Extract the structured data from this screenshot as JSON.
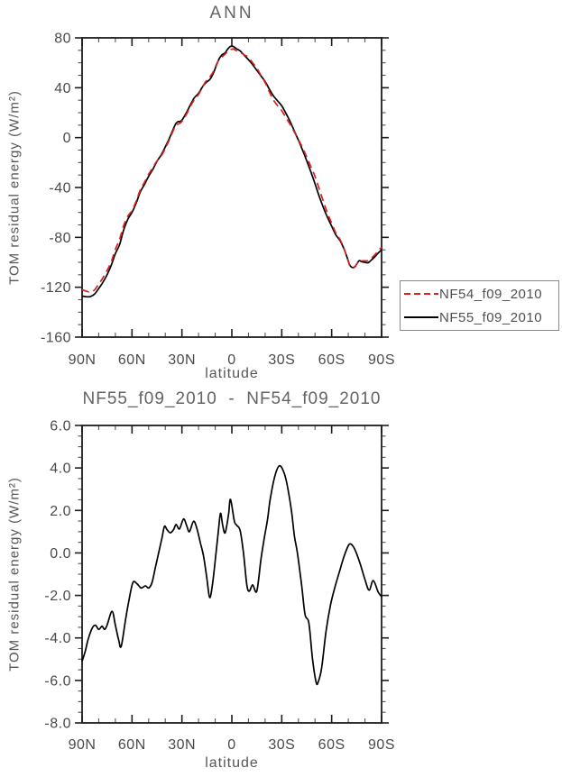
{
  "page": {
    "background": "#ffffff"
  },
  "chart_data": [
    {
      "type": "line",
      "title": "ANN",
      "xlabel": "latitude",
      "ylabel": "TOM residual energy (W/m²)",
      "xlim": [
        90,
        -90
      ],
      "ylim": [
        -160,
        80
      ],
      "grid": false,
      "x_tick_values": [
        90,
        60,
        30,
        0,
        -30,
        -60,
        -90
      ],
      "x_tick_labels": [
        "90N",
        "60N",
        "30N",
        "0",
        "30S",
        "60S",
        "90S"
      ],
      "x_minor_step": 10,
      "y_tick_values": [
        80,
        40,
        0,
        -40,
        -80,
        -120,
        -160
      ],
      "y_tick_labels": [
        "80",
        "40",
        "0",
        "-40",
        "-80",
        "-120",
        "-160"
      ],
      "y_minor_step": 10,
      "legend_position": "outside-right",
      "series": [
        {
          "name": "NF54_f09_2010",
          "color": "#dc1e1e",
          "line_style": "dashed",
          "lat": [
            90,
            87.5,
            85,
            82.5,
            80,
            77.5,
            75,
            72.5,
            70,
            67.5,
            65,
            62.5,
            60,
            57.5,
            55,
            52.5,
            50,
            47.5,
            45,
            42.5,
            40,
            37.5,
            35,
            33.5,
            32.5,
            31.5,
            30,
            27.5,
            25,
            22.5,
            20,
            17.5,
            16,
            14.5,
            13,
            11,
            9,
            7.5,
            6,
            5,
            4,
            2.5,
            1,
            0,
            -1,
            -2.5,
            -5,
            -7.5,
            -10,
            -12.5,
            -15,
            -17.5,
            -20,
            -22.5,
            -25,
            -27.5,
            -30,
            -32.5,
            -35,
            -37.5,
            -40,
            -42.5,
            -45,
            -47.5,
            -50,
            -52.5,
            -55,
            -57.5,
            -60,
            -62.5,
            -65,
            -67.5,
            -69,
            -70,
            -71,
            -72.5,
            -74,
            -75,
            -76.5,
            -78,
            -80,
            -82,
            -84,
            -86,
            -88,
            -90
          ],
          "values": [
            -121.9,
            -123.2,
            -123.8,
            -122.1,
            -117.4,
            -112.5,
            -106.6,
            -99.7,
            -89.6,
            -81.7,
            -70.5,
            -63,
            -58.5,
            -51,
            -41.9,
            -35.9,
            -29.4,
            -24.2,
            -18.7,
            -14.9,
            -8.7,
            -1.5,
            6.3,
            9.5,
            10.8,
            11.3,
            13.1,
            18.2,
            24.9,
            30.6,
            34.6,
            41,
            44.3,
            46.8,
            49,
            53.2,
            59.4,
            62.8,
            64.6,
            65.9,
            67,
            69.1,
            70.7,
            70.8,
            71.1,
            69.9,
            68.4,
            66.3,
            64.3,
            60,
            55.8,
            49.8,
            44.2,
            36.9,
            30.2,
            25.6,
            21.6,
            16.1,
            10.7,
            4.7,
            -1.6,
            -8.1,
            -15.5,
            -23.3,
            -31.2,
            -41.1,
            -51.1,
            -60.7,
            -68.7,
            -76.5,
            -81.7,
            -89.4,
            -95.2,
            -99.3,
            -102.9,
            -104.6,
            -103.7,
            -101.6,
            -98.4,
            -98.8,
            -98.8,
            -98.7,
            -96.5,
            -94,
            -90.7,
            -88
          ]
        },
        {
          "name": "NF55_f09_2010",
          "color": "#000000",
          "line_style": "solid",
          "lat": [
            90,
            87.5,
            85,
            82.5,
            80,
            77.5,
            75,
            72.5,
            70,
            67.5,
            65,
            62.5,
            60,
            57.5,
            55,
            52.5,
            50,
            47.5,
            45,
            42.5,
            40,
            37.5,
            35,
            33.5,
            32.5,
            31.5,
            30,
            27.5,
            25,
            22.5,
            20,
            17.5,
            16,
            14.5,
            13,
            11,
            9,
            7.5,
            6,
            5,
            4,
            2.5,
            1,
            0,
            -1,
            -2.5,
            -5,
            -7.5,
            -10,
            -12.5,
            -15,
            -17.5,
            -20,
            -22.5,
            -25,
            -27.5,
            -30,
            -32.5,
            -35,
            -37.5,
            -40,
            -42.5,
            -45,
            -47.5,
            -50,
            -52.5,
            -55,
            -57.5,
            -60,
            -62.5,
            -65,
            -67.5,
            -69,
            -70,
            -71,
            -72.5,
            -74,
            -75,
            -76.5,
            -78,
            -80,
            -82,
            -84,
            -86,
            -88,
            -90
          ],
          "values": [
            -127,
            -127.6,
            -127.5,
            -125.5,
            -121,
            -116,
            -110,
            -102.5,
            -93,
            -86,
            -74,
            -65.5,
            -60,
            -52.5,
            -43.5,
            -37.5,
            -31,
            -25.5,
            -19,
            -14,
            -7.5,
            -0.5,
            7.5,
            11.5,
            12.8,
            12.8,
            14,
            19.5,
            26,
            32,
            35.5,
            41,
            43.5,
            45.2,
            47,
            52,
            59,
            63.5,
            66.3,
            67.2,
            68,
            71,
            73,
            73.3,
            73,
            71.5,
            69.5,
            66,
            62.5,
            58.5,
            54,
            49.5,
            45,
            39,
            33.5,
            29.5,
            25.5,
            19.5,
            13,
            5.5,
            -2,
            -10,
            -18.5,
            -27.5,
            -37,
            -47,
            -56,
            -64,
            -71,
            -78,
            -82.5,
            -89.5,
            -95,
            -99,
            -102.5,
            -104.2,
            -103.5,
            -101.5,
            -98.7,
            -99.5,
            -100,
            -100.3,
            -98,
            -95.5,
            -92.5,
            -90
          ]
        }
      ]
    },
    {
      "type": "line",
      "title": "NF55_f09_2010  -  NF54_f09_2010",
      "xlabel": "latitude",
      "ylabel": "TOM residual energy (W/m²)",
      "xlim": [
        90,
        -90
      ],
      "ylim": [
        -8,
        6
      ],
      "grid": false,
      "x_tick_values": [
        90,
        60,
        30,
        0,
        -30,
        -60,
        -90
      ],
      "x_tick_labels": [
        "90N",
        "60N",
        "30N",
        "0",
        "30S",
        "60S",
        "90S"
      ],
      "x_minor_step": 10,
      "y_tick_values": [
        6,
        4,
        2,
        0,
        -2,
        -4,
        -6,
        -8
      ],
      "y_tick_labels": [
        "6.0",
        "4.0",
        "2.0",
        "0.0",
        "-2.0",
        "-4.0",
        "-6.0",
        "-8.0"
      ],
      "y_minor_step": 0.5,
      "legend_position": "none",
      "series": [
        {
          "name": "NF55_f09_2010 - NF54_f09_2010",
          "color": "#000000",
          "line_style": "solid",
          "lat": [
            90,
            88,
            86.5,
            84,
            82,
            80,
            78,
            76.5,
            75,
            72,
            70,
            68,
            66.5,
            64,
            62,
            59.5,
            57,
            54.5,
            52,
            50,
            48,
            46,
            44,
            42,
            40.5,
            39,
            37,
            35,
            33.5,
            31.5,
            29,
            27,
            25.5,
            23,
            21,
            19,
            17,
            15,
            13.3,
            11.5,
            9.5,
            8,
            6.8,
            5.5,
            4,
            2,
            0.8,
            -1.5,
            -3,
            -5,
            -7,
            -9,
            -10.5,
            -12.5,
            -15,
            -17.5,
            -19.5,
            -21.5,
            -23,
            -25.8,
            -28.5,
            -31,
            -33,
            -35.8,
            -37.6,
            -39.4,
            -42,
            -44,
            -46.3,
            -48.5,
            -50.7,
            -52,
            -54,
            -56.6,
            -59.3,
            -62,
            -64.8,
            -67.5,
            -70.5,
            -73,
            -75.3,
            -77.5,
            -80,
            -82.5,
            -85,
            -88,
            -90
          ],
          "values": [
            -5.1,
            -4.6,
            -4.1,
            -3.55,
            -3.4,
            -3.6,
            -3.45,
            -3.6,
            -3.4,
            -2.75,
            -3.4,
            -4.1,
            -4.4,
            -3.2,
            -2.3,
            -1.4,
            -1.45,
            -1.65,
            -1.55,
            -1.65,
            -1.4,
            -0.7,
            0,
            0.7,
            1.25,
            1.1,
            0.95,
            1.1,
            1.34,
            1.13,
            1.6,
            1.25,
            1,
            1.49,
            1.15,
            0.5,
            -0.15,
            -1.2,
            -2.1,
            -1.4,
            0,
            1.1,
            1.87,
            1.3,
            0.95,
            1.8,
            2.52,
            1.5,
            1.3,
            1.05,
            0,
            -1.5,
            -1.8,
            -1.5,
            -1.8,
            -0.3,
            0.7,
            1.6,
            2.5,
            3.6,
            4.1,
            3.85,
            3.3,
            2,
            0.8,
            0,
            -1.55,
            -2.9,
            -3.3,
            -5,
            -6.1,
            -6.05,
            -5.4,
            -3.7,
            -2.45,
            -1.6,
            -0.85,
            -0.15,
            0.4,
            0.3,
            -0.1,
            -0.6,
            -1.25,
            -1.75,
            -1.3,
            -1.85,
            -2.05
          ]
        }
      ]
    }
  ]
}
